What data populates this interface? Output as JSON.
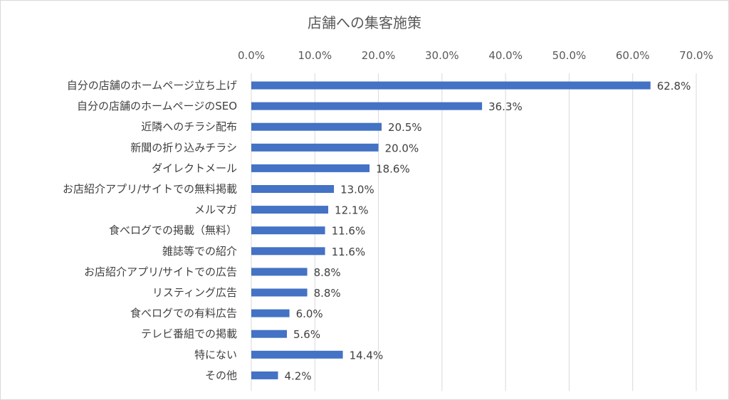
{
  "chart_data": {
    "type": "bar",
    "orientation": "horizontal",
    "title": "店舗への集客施策",
    "xlabel": "",
    "ylabel": "",
    "xlim": [
      0,
      70
    ],
    "x_ticks": [
      "0.0%",
      "10.0%",
      "20.0%",
      "30.0%",
      "40.0%",
      "50.0%",
      "60.0%",
      "70.0%"
    ],
    "x_axis_position": "top",
    "grid": true,
    "legend": "none",
    "bar_color": "#4472c4",
    "categories": [
      "自分の店舗のホームページ立ち上げ",
      "自分の店舗のホームページのSEO",
      "近隣へのチラシ配布",
      "新聞の折り込みチラシ",
      "ダイレクトメール",
      "お店紹介アプリ/サイトでの無料掲載",
      "メルマガ",
      "食べログでの掲載（無料）",
      "雑誌等での紹介",
      "お店紹介アプリ/サイトでの広告",
      "リスティング広告",
      "食べログでの有料広告",
      "テレビ番組での掲載",
      "特にない",
      "その他"
    ],
    "values": [
      62.8,
      36.3,
      20.5,
      20.0,
      18.6,
      13.0,
      12.1,
      11.6,
      11.6,
      8.8,
      8.8,
      6.0,
      5.6,
      14.4,
      4.2
    ],
    "data_labels": [
      "62.8%",
      "36.3%",
      "20.5%",
      "20.0%",
      "18.6%",
      "13.0%",
      "12.1%",
      "11.6%",
      "11.6%",
      "8.8%",
      "8.8%",
      "6.0%",
      "5.6%",
      "14.4%",
      "4.2%"
    ]
  }
}
